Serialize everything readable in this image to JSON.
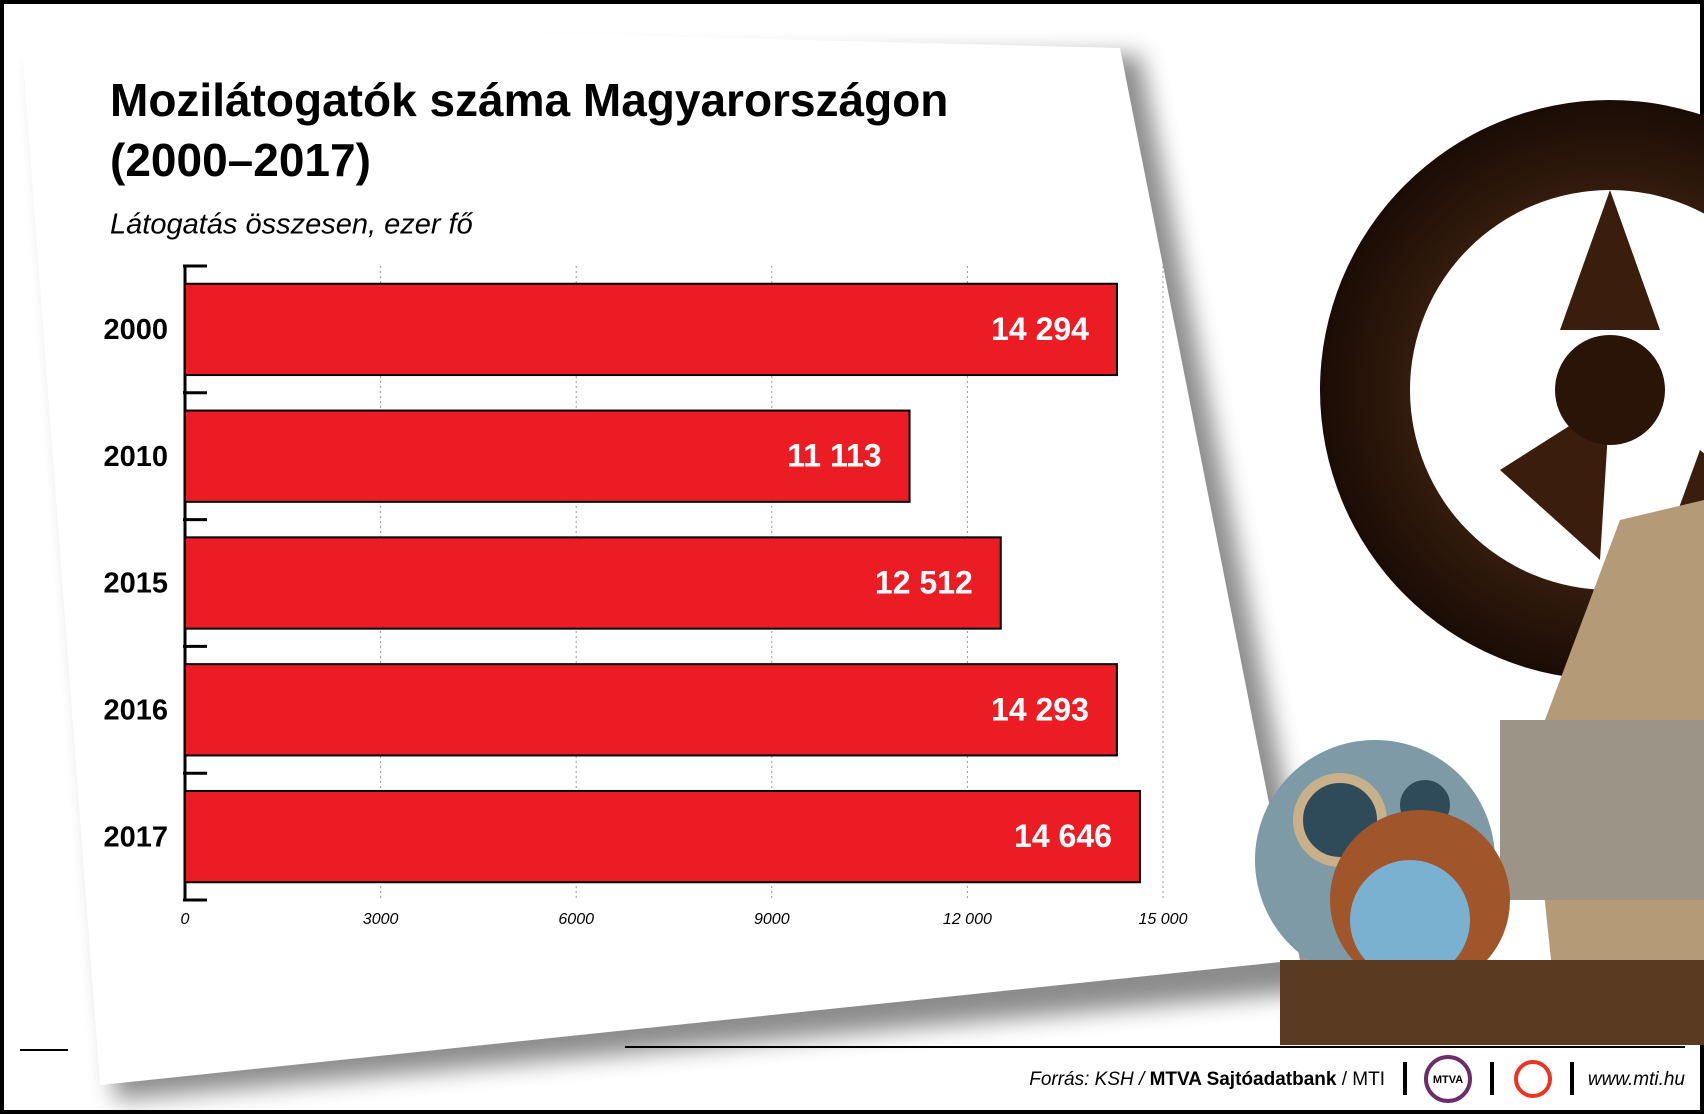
{
  "chart_data": {
    "type": "bar",
    "orientation": "horizontal",
    "title": "Mozilátogatók száma Magyarországon",
    "title_line2": "(2000–2017)",
    "subtitle": "Látogatás összesen, ezer fő",
    "categories": [
      "2000",
      "2010",
      "2015",
      "2016",
      "2017"
    ],
    "values": [
      14294,
      11113,
      12512,
      14293,
      14646
    ],
    "value_labels": [
      "14 294",
      "11 113",
      "12 512",
      "14 293",
      "14 646"
    ],
    "color": "#ec1c24",
    "xlim": [
      0,
      15000
    ],
    "xticks": [
      0,
      3000,
      6000,
      9000,
      {
        "value": 12000,
        "label": "12 000"
      },
      {
        "value": 15000,
        "label": "15 000"
      }
    ],
    "grid": true
  },
  "footer": {
    "source_prefix": "Forrás: KSH /",
    "source_bold": "MTVA Sajtóadatbank",
    "source_suffix": "/ MTI",
    "logo": "MTVA",
    "website": "www.mti.hu"
  }
}
